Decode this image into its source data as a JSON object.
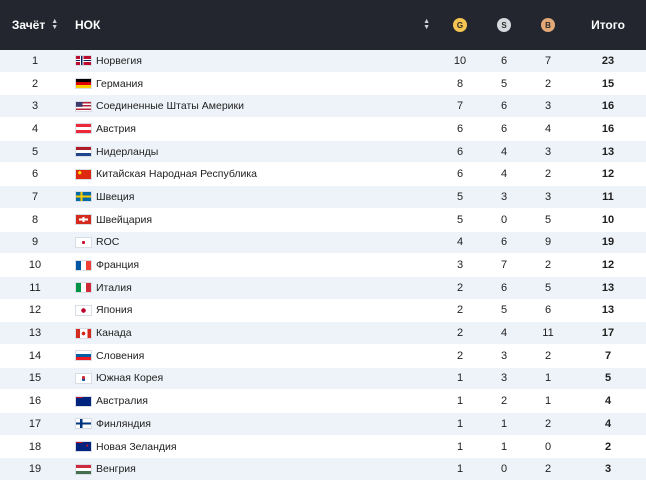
{
  "header": {
    "rank_label": "Зачёт",
    "noc_label": "НОК",
    "gold_letter": "G",
    "silver_letter": "S",
    "bronze_letter": "B",
    "total_label": "Итого",
    "gold_color": "#f5c451",
    "silver_color": "#d6d9de",
    "bronze_color": "#e2a878"
  },
  "rows": [
    {
      "rank": "1",
      "noc": "Норвегия",
      "flag": "norway-flag",
      "gold": "10",
      "silver": "6",
      "bronze": "7",
      "total": "23"
    },
    {
      "rank": "2",
      "noc": "Германия",
      "flag": "germany-flag",
      "gold": "8",
      "silver": "5",
      "bronze": "2",
      "total": "15"
    },
    {
      "rank": "3",
      "noc": "Соединенные Штаты Америки",
      "flag": "usa-flag",
      "gold": "7",
      "silver": "6",
      "bronze": "3",
      "total": "16"
    },
    {
      "rank": "4",
      "noc": "Австрия",
      "flag": "austria-flag",
      "gold": "6",
      "silver": "6",
      "bronze": "4",
      "total": "16"
    },
    {
      "rank": "5",
      "noc": "Нидерланды",
      "flag": "netherlands-flag",
      "gold": "6",
      "silver": "4",
      "bronze": "3",
      "total": "13"
    },
    {
      "rank": "6",
      "noc": "Китайская Народная Республика",
      "flag": "china-flag",
      "gold": "6",
      "silver": "4",
      "bronze": "2",
      "total": "12"
    },
    {
      "rank": "7",
      "noc": "Швеция",
      "flag": "sweden-flag",
      "gold": "5",
      "silver": "3",
      "bronze": "3",
      "total": "11"
    },
    {
      "rank": "8",
      "noc": "Швейцария",
      "flag": "switzerland-flag",
      "gold": "5",
      "silver": "0",
      "bronze": "5",
      "total": "10"
    },
    {
      "rank": "9",
      "noc": "ROC",
      "flag": "roc-flag",
      "gold": "4",
      "silver": "6",
      "bronze": "9",
      "total": "19"
    },
    {
      "rank": "10",
      "noc": "Франция",
      "flag": "france-flag",
      "gold": "3",
      "silver": "7",
      "bronze": "2",
      "total": "12"
    },
    {
      "rank": "11",
      "noc": "Италия",
      "flag": "italy-flag",
      "gold": "2",
      "silver": "6",
      "bronze": "5",
      "total": "13"
    },
    {
      "rank": "12",
      "noc": "Япония",
      "flag": "japan-flag",
      "gold": "2",
      "silver": "5",
      "bronze": "6",
      "total": "13"
    },
    {
      "rank": "13",
      "noc": "Канада",
      "flag": "canada-flag",
      "gold": "2",
      "silver": "4",
      "bronze": "11",
      "total": "17"
    },
    {
      "rank": "14",
      "noc": "Словения",
      "flag": "slovenia-flag",
      "gold": "2",
      "silver": "3",
      "bronze": "2",
      "total": "7"
    },
    {
      "rank": "15",
      "noc": "Южная Корея",
      "flag": "south-korea-flag",
      "gold": "1",
      "silver": "3",
      "bronze": "1",
      "total": "5"
    },
    {
      "rank": "16",
      "noc": "Австралия",
      "flag": "australia-flag",
      "gold": "1",
      "silver": "2",
      "bronze": "1",
      "total": "4"
    },
    {
      "rank": "17",
      "noc": "Финляндия",
      "flag": "finland-flag",
      "gold": "1",
      "silver": "1",
      "bronze": "2",
      "total": "4"
    },
    {
      "rank": "18",
      "noc": "Новая Зеландия",
      "flag": "new-zealand-flag",
      "gold": "1",
      "silver": "1",
      "bronze": "0",
      "total": "2"
    },
    {
      "rank": "19",
      "noc": "Венгрия",
      "flag": "hungary-flag",
      "gold": "1",
      "silver": "0",
      "bronze": "2",
      "total": "3"
    }
  ]
}
